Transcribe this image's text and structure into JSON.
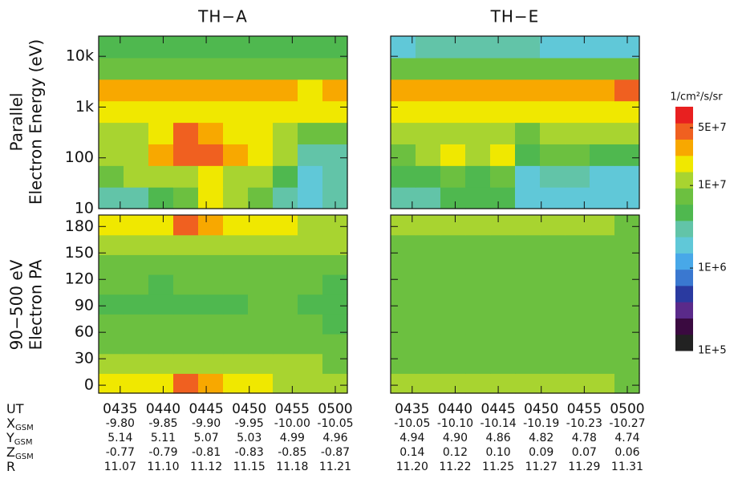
{
  "chart_data": {
    "type": "heatmap",
    "energy_label": [
      "Parallel",
      "Electron Energy (eV)"
    ],
    "pa_label": [
      "90−500 eV",
      "Electron PA"
    ],
    "colorbar": {
      "title": "1/cm²/s/sr",
      "clim": [
        100000,
        90000000
      ],
      "colormap": [
        "#222222",
        "#3a0a40",
        "#5a2a8a",
        "#2a3aa0",
        "#3a78d0",
        "#48a8e8",
        "#60c8d8",
        "#62c4a8",
        "#4fb84f",
        "#6cc040",
        "#a8d430",
        "#f0e800",
        "#f8a800",
        "#f06020",
        "#e82020"
      ],
      "ticks": [
        {
          "value": 100000,
          "label": "1E+5"
        },
        {
          "value": 1000000,
          "label": "1E+6"
        },
        {
          "value": 10000000,
          "label": "1E+7"
        },
        {
          "value": 50000000,
          "label": "5E+7"
        }
      ]
    },
    "ephemeris_rows": [
      {
        "label": "UT"
      },
      {
        "label": "X",
        "sub": "GSM"
      },
      {
        "label": "Y",
        "sub": "GSM"
      },
      {
        "label": "Z",
        "sub": "GSM"
      },
      {
        "label": "R"
      }
    ],
    "panels": [
      {
        "title": "TH−A",
        "xlim": [
          272.5,
          301.4
        ],
        "xticks": [
          {
            "value": 275,
            "label": "0435"
          },
          {
            "value": 280,
            "label": "0440"
          },
          {
            "value": 285,
            "label": "0445"
          },
          {
            "value": 290,
            "label": "0450"
          },
          {
            "value": 295,
            "label": "0455"
          },
          {
            "value": 300,
            "label": "0500"
          }
        ],
        "energy": {
          "ylim": [
            10,
            25000
          ],
          "log": true,
          "yticks": [
            10,
            100,
            {
              "value": 1000,
              "label": "1k"
            },
            {
              "value": 10000,
              "label": "10k"
            }
          ],
          "z": [
            [
              3000000.0,
              3000000.0,
              5000000.0,
              8000000.0,
              15000000.0,
              12000000.0,
              8000000.0,
              3000000.0,
              2000000.0,
              3000000.0
            ],
            [
              8000000.0,
              10000000.0,
              10000000.0,
              12000000.0,
              15000000.0,
              12000000.0,
              10000000.0,
              4000000.0,
              2000000.0,
              3000000.0
            ],
            [
              10000000.0,
              12000000.0,
              30000000.0,
              40000000.0,
              40000000.0,
              30000000.0,
              15000000.0,
              10000000.0,
              3000000.0,
              3000000.0
            ],
            [
              12000000.0,
              12000000.0,
              20000000.0,
              50000000.0,
              30000000.0,
              20000000.0,
              15000000.0,
              10000000.0,
              8000000.0,
              8000000.0
            ],
            [
              20000000.0,
              20000000.0,
              20000000.0,
              20000000.0,
              20000000.0,
              20000000.0,
              20000000.0,
              15000000.0,
              15000000.0,
              20000000.0
            ],
            [
              30000000.0,
              30000000.0,
              25000000.0,
              25000000.0,
              25000000.0,
              25000000.0,
              25000000.0,
              30000000.0,
              20000000.0,
              30000000.0
            ],
            [
              8000000.0,
              8000000.0,
              8000000.0,
              8000000.0,
              8000000.0,
              8000000.0,
              8000000.0,
              8000000.0,
              8000000.0,
              8000000.0
            ],
            [
              4000000.0,
              5000000.0,
              4000000.0,
              4000000.0,
              5000000.0,
              4000000.0,
              4000000.0,
              4000000.0,
              4000000.0,
              4000000.0
            ]
          ]
        },
        "pa": {
          "ylim": [
            -9,
            193
          ],
          "log": false,
          "yticks": [
            0,
            30,
            60,
            90,
            120,
            150,
            180
          ],
          "z": [
            [
              15000000.0,
              15000000.0,
              20000000.0,
              40000000.0,
              30000000.0,
              20000000.0,
              15000000.0,
              12000000.0,
              12000000.0,
              10000000.0
            ],
            [
              10000000.0,
              10000000.0,
              10000000.0,
              12000000.0,
              12000000.0,
              10000000.0,
              10000000.0,
              10000000.0,
              10000000.0,
              8000000.0
            ],
            [
              8000000.0,
              8000000.0,
              8000000.0,
              8000000.0,
              8000000.0,
              8000000.0,
              8000000.0,
              8000000.0,
              8000000.0,
              8000000.0
            ],
            [
              6000000.0,
              6000000.0,
              6000000.0,
              6000000.0,
              6000000.0,
              6000000.0,
              6000000.0,
              6000000.0,
              6000000.0,
              5000000.0
            ],
            [
              5000000.0,
              5000000.0,
              5000000.0,
              5000000.0,
              5000000.0,
              5000000.0,
              6000000.0,
              6000000.0,
              5000000.0,
              5000000.0
            ],
            [
              6000000.0,
              6000000.0,
              5000000.0,
              6000000.0,
              6000000.0,
              6000000.0,
              6000000.0,
              6000000.0,
              6000000.0,
              5000000.0
            ],
            [
              8000000.0,
              8000000.0,
              8000000.0,
              8000000.0,
              8000000.0,
              8000000.0,
              8000000.0,
              8000000.0,
              8000000.0,
              8000000.0
            ],
            [
              10000000.0,
              10000000.0,
              10000000.0,
              12000000.0,
              12000000.0,
              10000000.0,
              10000000.0,
              10000000.0,
              10000000.0,
              10000000.0
            ],
            [
              15000000.0,
              15000000.0,
              15000000.0,
              40000000.0,
              30000000.0,
              20000000.0,
              15000000.0,
              15000000.0,
              12000000.0,
              10000000.0
            ]
          ]
        },
        "ephemeris": [
          [
            "-9.80",
            "-9.85",
            "-9.90",
            "-9.95",
            "-10.00",
            "-10.05"
          ],
          [
            "5.14",
            "5.11",
            "5.07",
            "5.03",
            "4.99",
            "4.96"
          ],
          [
            "-0.77",
            "-0.79",
            "-0.81",
            "-0.83",
            "-0.85",
            "-0.87"
          ],
          [
            "11.07",
            "11.10",
            "11.12",
            "11.15",
            "11.18",
            "11.21"
          ]
        ]
      },
      {
        "title": "TH−E",
        "xlim": [
          272.5,
          301.4
        ],
        "xticks": [
          {
            "value": 275,
            "label": "0435"
          },
          {
            "value": 280,
            "label": "0440"
          },
          {
            "value": 285,
            "label": "0445"
          },
          {
            "value": 290,
            "label": "0450"
          },
          {
            "value": 295,
            "label": "0455"
          },
          {
            "value": 300,
            "label": "0500"
          }
        ],
        "energy": {
          "ylim": [
            10,
            25000
          ],
          "log": true,
          "yticks": [
            10,
            100,
            1000,
            10000
          ],
          "z": [
            [
              3000000.0,
              3000000.0,
              4000000.0,
              4000000.0,
              4000000.0,
              2000000.0,
              2000000.0,
              2000000.0,
              2000000.0,
              2000000.0
            ],
            [
              4000000.0,
              5000000.0,
              8000000.0,
              5000000.0,
              8000000.0,
              2000000.0,
              3000000.0,
              3000000.0,
              2000000.0,
              2000000.0
            ],
            [
              8000000.0,
              10000000.0,
              15000000.0,
              10000000.0,
              15000000.0,
              4000000.0,
              8000000.0,
              8000000.0,
              4000000.0,
              5000000.0
            ],
            [
              10000000.0,
              10000000.0,
              10000000.0,
              10000000.0,
              10000000.0,
              8000000.0,
              10000000.0,
              10000000.0,
              10000000.0,
              10000000.0
            ],
            [
              15000000.0,
              15000000.0,
              15000000.0,
              15000000.0,
              15000000.0,
              20000000.0,
              20000000.0,
              20000000.0,
              20000000.0,
              20000000.0
            ],
            [
              30000000.0,
              30000000.0,
              30000000.0,
              25000000.0,
              25000000.0,
              30000000.0,
              30000000.0,
              30000000.0,
              30000000.0,
              40000000.0
            ],
            [
              8000000.0,
              8000000.0,
              8000000.0,
              8000000.0,
              8000000.0,
              8000000.0,
              8000000.0,
              8000000.0,
              8000000.0,
              8000000.0
            ],
            [
              2000000.0,
              3000000.0,
              3000000.0,
              3000000.0,
              3000000.0,
              3000000.0,
              2000000.0,
              2000000.0,
              2000000.0,
              2000000.0
            ]
          ]
        },
        "pa": {
          "ylim": [
            -9,
            193
          ],
          "log": false,
          "yticks": [
            0,
            30,
            60,
            90,
            120,
            150,
            180
          ],
          "z": [
            [
              10000000.0,
              10000000.0,
              10000000.0,
              10000000.0,
              10000000.0,
              10000000.0,
              10000000.0,
              10000000.0,
              10000000.0,
              8000000.0
            ],
            [
              8000000.0,
              8000000.0,
              8000000.0,
              8000000.0,
              8000000.0,
              8000000.0,
              8000000.0,
              8000000.0,
              8000000.0,
              8000000.0
            ],
            [
              8000000.0,
              8000000.0,
              8000000.0,
              8000000.0,
              8000000.0,
              8000000.0,
              8000000.0,
              8000000.0,
              8000000.0,
              8000000.0
            ],
            [
              7000000.0,
              7000000.0,
              7000000.0,
              7000000.0,
              7000000.0,
              7000000.0,
              7000000.0,
              7000000.0,
              7000000.0,
              6000000.0
            ],
            [
              6000000.0,
              6000000.0,
              6000000.0,
              6000000.0,
              7000000.0,
              6000000.0,
              7000000.0,
              7000000.0,
              6000000.0,
              6000000.0
            ],
            [
              7000000.0,
              7000000.0,
              7000000.0,
              7000000.0,
              7000000.0,
              7000000.0,
              7000000.0,
              7000000.0,
              7000000.0,
              6000000.0
            ],
            [
              8000000.0,
              8000000.0,
              8000000.0,
              8000000.0,
              8000000.0,
              8000000.0,
              8000000.0,
              8000000.0,
              8000000.0,
              8000000.0
            ],
            [
              8000000.0,
              8000000.0,
              8000000.0,
              8000000.0,
              8000000.0,
              8000000.0,
              8000000.0,
              8000000.0,
              8000000.0,
              8000000.0
            ],
            [
              10000000.0,
              10000000.0,
              10000000.0,
              10000000.0,
              10000000.0,
              10000000.0,
              10000000.0,
              10000000.0,
              10000000.0,
              8000000.0
            ]
          ]
        },
        "ephemeris": [
          [
            "-10.05",
            "-10.10",
            "-10.14",
            "-10.19",
            "-10.23",
            "-10.27"
          ],
          [
            "4.94",
            "4.90",
            "4.86",
            "4.82",
            "4.78",
            "4.74"
          ],
          [
            "0.14",
            "0.12",
            "0.10",
            "0.09",
            "0.07",
            "0.06"
          ],
          [
            "11.20",
            "11.22",
            "11.25",
            "11.27",
            "11.29",
            "11.31"
          ]
        ]
      }
    ]
  }
}
